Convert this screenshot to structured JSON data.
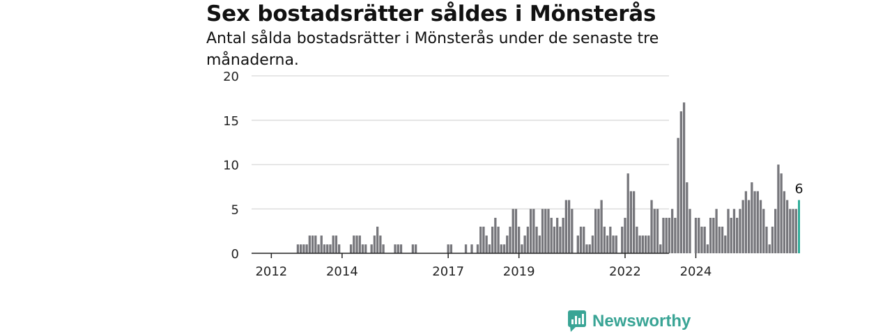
{
  "title": "Sex bostadsrätter såldes i Mönsterås",
  "subtitle": "Antal sålda bostadsrätter i Mönsterås under de senaste tre månaderna.",
  "brand": {
    "name": "Newsworthy"
  },
  "colors": {
    "bar": "#76767b",
    "highlight": "#23a893",
    "grid": "#dddddd",
    "axis": "#222222",
    "brand": "#39a495"
  },
  "chart_data": {
    "type": "bar",
    "ylim": [
      0,
      20
    ],
    "yticks": [
      0,
      5,
      10,
      15,
      20
    ],
    "xticks": [
      "2012",
      "2014",
      "2017",
      "2019",
      "2022",
      "2024"
    ],
    "x_start": "2011-01",
    "grid": true,
    "values": [
      0,
      0,
      0,
      0,
      0,
      0,
      0,
      0,
      0,
      0,
      0,
      0,
      0,
      0,
      0,
      0,
      0,
      0,
      0,
      0,
      0,
      1,
      1,
      1,
      1,
      2,
      2,
      2,
      1,
      2,
      1,
      1,
      1,
      2,
      2,
      1,
      0,
      0,
      0,
      1,
      2,
      2,
      2,
      1,
      1,
      0,
      1,
      2,
      3,
      2,
      1,
      0,
      0,
      0,
      1,
      1,
      1,
      0,
      0,
      0,
      1,
      1,
      0,
      0,
      0,
      0,
      0,
      0,
      0,
      0,
      0,
      0,
      1,
      1,
      0,
      0,
      0,
      0,
      1,
      0,
      1,
      0,
      1,
      3,
      3,
      2,
      1,
      3,
      4,
      3,
      1,
      1,
      2,
      3,
      5,
      5,
      3,
      1,
      2,
      3,
      5,
      5,
      3,
      2,
      5,
      5,
      5,
      4,
      3,
      4,
      3,
      4,
      6,
      6,
      5,
      0,
      2,
      3,
      3,
      1,
      1,
      2,
      5,
      5,
      6,
      3,
      2,
      3,
      2,
      2,
      0,
      3,
      4,
      9,
      7,
      7,
      3,
      2,
      2,
      2,
      2,
      6,
      5,
      5,
      1,
      4,
      4,
      4,
      5,
      4,
      13,
      16,
      17,
      8,
      5,
      0,
      4,
      4,
      3,
      3,
      1,
      4,
      4,
      5,
      3,
      3,
      2,
      5,
      4,
      5,
      4,
      5,
      6,
      7,
      6,
      8,
      7,
      7,
      6,
      5,
      3,
      1,
      3,
      5,
      10,
      9,
      7,
      6,
      5,
      5,
      5,
      6
    ],
    "highlight_last": true,
    "last_value_label": "6"
  }
}
